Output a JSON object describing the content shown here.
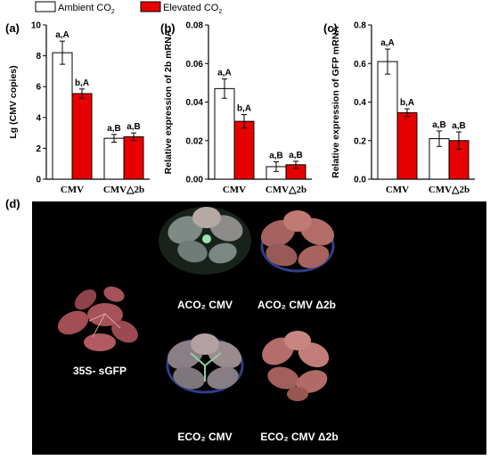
{
  "legend": {
    "entries": [
      {
        "label": "Ambient CO",
        "sub": "2",
        "color": "#ffffff"
      },
      {
        "label": "Elevated CO",
        "sub": "2",
        "color": "#e60000"
      }
    ]
  },
  "panel_d": {
    "label": "(d)",
    "photos": [
      {
        "label": "35S- sGFP"
      },
      {
        "label": "ACO₂ CMV"
      },
      {
        "label": "ACO₂ CMV Δ2b"
      },
      {
        "label": "ECO₂ CMV"
      },
      {
        "label": "ECO₂ CMV Δ2b"
      }
    ]
  },
  "chart_data": [
    {
      "type": "bar",
      "panel": "(a)",
      "title": "",
      "xlabel": "",
      "ylabel": "Lg (CMV copies)",
      "categories": [
        "CMV",
        "CMV△2b"
      ],
      "ylim": [
        0,
        10
      ],
      "yticks": [
        0,
        2,
        4,
        6,
        8,
        10
      ],
      "ytick_labels": [
        "0",
        "2",
        "4",
        "6",
        "8",
        "10"
      ],
      "series": [
        {
          "values": [
            8.2,
            2.65
          ],
          "errors": [
            0.75,
            0.25
          ],
          "labels": [
            "a,A",
            "a,B"
          ],
          "color": "#ffffff"
        },
        {
          "values": [
            5.55,
            2.75
          ],
          "errors": [
            0.3,
            0.25
          ],
          "labels": [
            "b,A",
            "a,B"
          ],
          "color": "#e60000"
        }
      ]
    },
    {
      "type": "bar",
      "panel": "(b)",
      "title": "",
      "xlabel": "",
      "ylabel": "Relative expression of 2b mRNA",
      "categories": [
        "CMV",
        "CMV△2b"
      ],
      "ylim": [
        0,
        0.08
      ],
      "yticks": [
        0,
        0.02,
        0.04,
        0.06,
        0.08
      ],
      "ytick_labels": [
        "0.00",
        "0.02",
        "0.04",
        "0.06",
        "0.08"
      ],
      "series": [
        {
          "values": [
            0.047,
            0.0065
          ],
          "errors": [
            0.005,
            0.0025
          ],
          "labels": [
            "a,A",
            "a,B"
          ],
          "color": "#ffffff"
        },
        {
          "values": [
            0.03,
            0.0075
          ],
          "errors": [
            0.0035,
            0.0018
          ],
          "labels": [
            "b,A",
            "a,B"
          ],
          "color": "#e60000"
        }
      ]
    },
    {
      "type": "bar",
      "panel": "(c)",
      "title": "",
      "xlabel": "",
      "ylabel": "Relative expression of GFP mRNA",
      "categories": [
        "CMV",
        "CMV△2b"
      ],
      "ylim": [
        0,
        0.8
      ],
      "yticks": [
        0,
        0.2,
        0.4,
        0.6,
        0.8
      ],
      "ytick_labels": [
        "0.0",
        "0.2",
        "0.4",
        "0.6",
        "0.8"
      ],
      "series": [
        {
          "values": [
            0.61,
            0.21
          ],
          "errors": [
            0.065,
            0.04
          ],
          "labels": [
            "a,A",
            "a,B"
          ],
          "color": "#ffffff"
        },
        {
          "values": [
            0.345,
            0.2
          ],
          "errors": [
            0.02,
            0.045
          ],
          "labels": [
            "b,A",
            "a,B"
          ],
          "color": "#e60000"
        }
      ]
    }
  ]
}
